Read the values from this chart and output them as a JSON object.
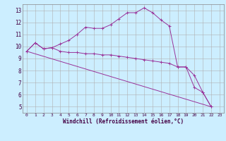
{
  "xlabel": "Windchill (Refroidissement éolien,°C)",
  "background_color": "#cceeff",
  "grid_color": "#b0b0b0",
  "line_color": "#993399",
  "xlim": [
    -0.5,
    23.5
  ],
  "ylim": [
    4.5,
    13.5
  ],
  "yticks": [
    5,
    6,
    7,
    8,
    9,
    10,
    11,
    12,
    13
  ],
  "xticks": [
    0,
    1,
    2,
    3,
    4,
    5,
    6,
    7,
    8,
    9,
    10,
    11,
    12,
    13,
    14,
    15,
    16,
    17,
    18,
    19,
    20,
    21,
    22,
    23
  ],
  "series1_x": [
    0,
    1,
    2,
    3,
    4,
    5,
    6,
    7,
    8,
    9,
    10,
    11,
    12,
    13,
    14,
    15,
    16,
    17,
    18,
    19,
    20,
    21,
    22
  ],
  "series1_y": [
    9.6,
    10.3,
    9.8,
    9.9,
    10.2,
    10.5,
    11.0,
    11.6,
    11.5,
    11.5,
    11.8,
    12.3,
    12.8,
    12.8,
    13.2,
    12.8,
    12.2,
    11.7,
    8.3,
    8.3,
    6.6,
    6.2,
    5.0
  ],
  "series2_x": [
    0,
    1,
    2,
    3,
    4,
    5,
    6,
    7,
    8,
    9,
    10,
    11,
    12,
    13,
    14,
    15,
    16,
    17,
    18,
    19,
    20,
    21,
    22
  ],
  "series2_y": [
    9.6,
    10.3,
    9.8,
    9.9,
    9.6,
    9.5,
    9.5,
    9.4,
    9.4,
    9.3,
    9.3,
    9.2,
    9.1,
    9.0,
    8.9,
    8.8,
    8.7,
    8.6,
    8.3,
    8.3,
    7.6,
    6.2,
    5.0
  ],
  "series3_x": [
    0,
    22
  ],
  "series3_y": [
    9.6,
    5.0
  ]
}
